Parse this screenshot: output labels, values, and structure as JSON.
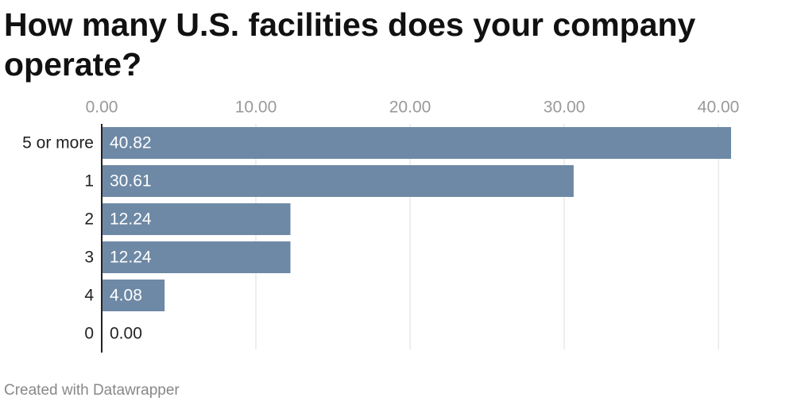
{
  "chart_data": {
    "type": "bar",
    "orientation": "horizontal",
    "title": "How many U.S. facilities does your company operate?",
    "categories": [
      "5 or more",
      "1",
      "2",
      "3",
      "4",
      "0"
    ],
    "values": [
      40.82,
      30.61,
      12.24,
      12.24,
      4.08,
      0
    ],
    "value_labels": [
      "40.82",
      "30.61",
      "12.24",
      "12.24",
      "4.08",
      "0.00"
    ],
    "color": "#6e89a6",
    "xlim": [
      0,
      40.82
    ],
    "xticks": [
      {
        "value": 0,
        "label": "0.00"
      },
      {
        "value": 10,
        "label": "10.00"
      },
      {
        "value": 20,
        "label": "20.00"
      },
      {
        "value": 30,
        "label": "30.00"
      },
      {
        "value": 40,
        "label": "40.00"
      }
    ],
    "grid": true,
    "footer": "Created with Datawrapper"
  }
}
